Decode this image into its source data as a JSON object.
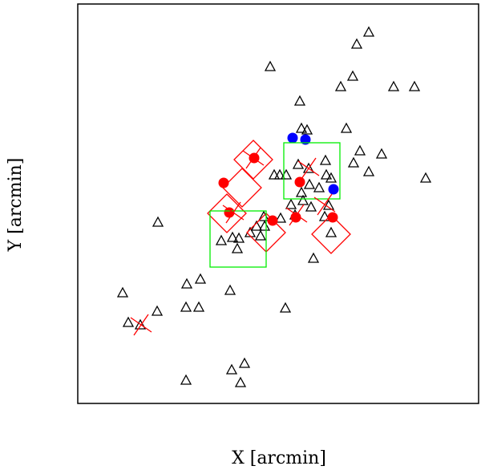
{
  "chart_data": {
    "type": "scatter",
    "x_label": "X [arcmin]",
    "y_label": "Y [arcmin]",
    "xlim": [
      0,
      500
    ],
    "ylim": [
      0,
      498
    ],
    "series": [
      {
        "marker": "triangle",
        "color": "#000000",
        "x": [
          363,
          348,
          240,
          343,
          328,
          394,
          420,
          277,
          335,
          279,
          286,
          352,
          379,
          309,
          344,
          363,
          434,
          275,
          288,
          245,
          252,
          260,
          310,
          316,
          289,
          301,
          279,
          266,
          281,
          291,
          313,
          271,
          308,
          100,
          232,
          223,
          233,
          215,
          228,
          253,
          316,
          179,
          193,
          201,
          199,
          294,
          136,
          153,
          56,
          190,
          99,
          135,
          151,
          259,
          63,
          78,
          208,
          192,
          135,
          203
        ],
        "y": [
          463,
          448,
          420,
          408,
          395,
          395,
          395,
          377,
          343,
          343,
          341,
          315,
          311,
          303,
          300,
          289,
          281,
          298,
          293,
          285,
          285,
          285,
          285,
          281,
          273,
          269,
          263,
          248,
          253,
          245,
          247,
          235,
          233,
          226,
          233,
          221,
          221,
          213,
          209,
          231,
          213,
          203,
          207,
          206,
          193,
          181,
          149,
          155,
          138,
          141,
          115,
          120,
          120,
          119,
          101,
          98,
          50,
          42,
          29,
          26
        ]
      },
      {
        "marker": "circle",
        "color": "#ff0000",
        "x": [
          220,
          182,
          189,
          277,
          243,
          272,
          318
        ],
        "y": [
          306,
          275,
          238,
          276,
          228,
          232,
          232
        ]
      },
      {
        "marker": "circle",
        "color": "#0000ff",
        "x": [
          268,
          284,
          319
        ],
        "y": [
          331,
          329,
          267
        ]
      },
      {
        "marker": "diamond",
        "color": "#ff0000",
        "x": [
          219,
          205,
          186,
          235,
          316
        ],
        "y": [
          304,
          269,
          237,
          213,
          211
        ]
      },
      {
        "marker": "square",
        "color": "#00ee00",
        "x": [
          292,
          200
        ],
        "y": [
          290,
          205
        ]
      },
      {
        "marker": "cross",
        "color": "#ff0000",
        "x": [
          79,
          219,
          288,
          308,
          273,
          194
        ],
        "y": [
          98,
          306,
          293,
          248,
          235,
          238
        ]
      }
    ]
  }
}
